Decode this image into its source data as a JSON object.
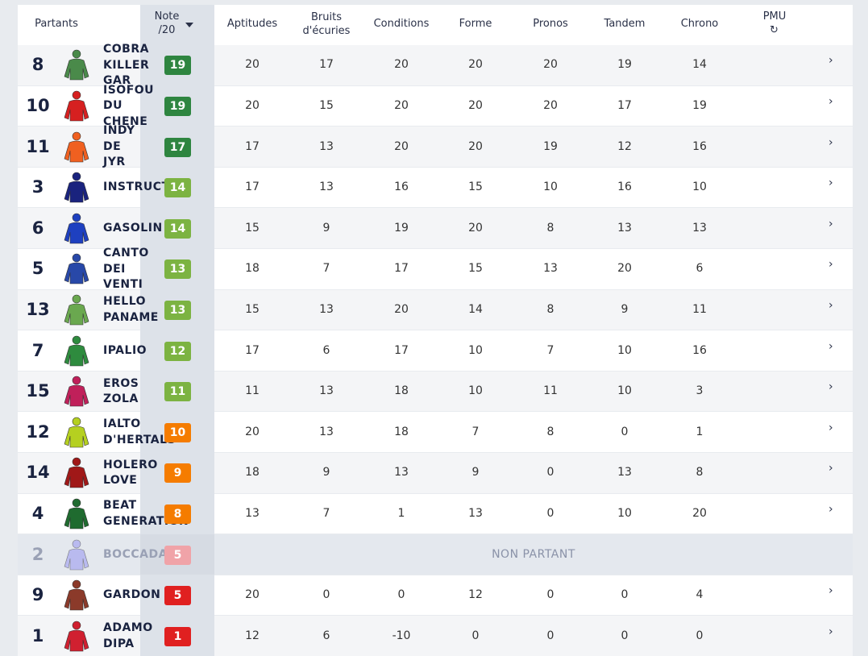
{
  "header": [
    "Partants",
    "Note /20",
    "Aptitudes",
    "Bruits d'écuries",
    "Conditions",
    "Forme",
    "Pronos",
    "Tandem",
    "Chrono",
    "PMU"
  ],
  "rows": [
    {
      "number": "8",
      "name": "COBRA KILLER GAR",
      "note": 19,
      "silks": "#4a8a4a",
      "scores": [
        20,
        17,
        20,
        20,
        20,
        19,
        14
      ]
    },
    {
      "number": "10",
      "name": "ISOFOU DU CHENE",
      "note": 19,
      "silks": "#d62020",
      "scores": [
        20,
        15,
        20,
        20,
        20,
        17,
        19
      ]
    },
    {
      "number": "11",
      "name": "INDY DE JYR",
      "note": 17,
      "silks": "#f06020",
      "scores": [
        17,
        13,
        20,
        20,
        19,
        12,
        16
      ]
    },
    {
      "number": "3",
      "name": "INSTRUCTOR",
      "note": 14,
      "silks": "#1a237e",
      "scores": [
        17,
        13,
        16,
        15,
        10,
        16,
        10
      ]
    },
    {
      "number": "6",
      "name": "GASOLIN",
      "note": 14,
      "silks": "#1e40c0",
      "scores": [
        15,
        9,
        19,
        20,
        8,
        13,
        13
      ]
    },
    {
      "number": "5",
      "name": "CANTO DEI VENTI",
      "note": 13,
      "silks": "#2848a8",
      "scores": [
        18,
        7,
        17,
        15,
        13,
        20,
        6
      ]
    },
    {
      "number": "13",
      "name": "HELLO PANAME",
      "note": 13,
      "silks": "#6aa84f",
      "scores": [
        15,
        13,
        20,
        14,
        8,
        9,
        11
      ]
    },
    {
      "number": "7",
      "name": "IPALIO",
      "note": 12,
      "silks": "#2e8b3e",
      "scores": [
        17,
        6,
        17,
        10,
        7,
        10,
        16
      ]
    },
    {
      "number": "15",
      "name": "EROS ZOLA",
      "note": 11,
      "silks": "#c0205a",
      "scores": [
        11,
        13,
        18,
        10,
        11,
        10,
        3
      ]
    },
    {
      "number": "12",
      "name": "IALTO D'HERTALS",
      "note": 10,
      "silks": "#b5d020",
      "scores": [
        20,
        13,
        18,
        7,
        8,
        0,
        1
      ]
    },
    {
      "number": "14",
      "name": "HOLERO LOVE",
      "note": 9,
      "silks": "#a01818",
      "scores": [
        18,
        9,
        13,
        9,
        0,
        13,
        8
      ]
    },
    {
      "number": "4",
      "name": "BEAT GENERATION",
      "note": 8,
      "silks": "#1f6b2f",
      "scores": [
        13,
        7,
        1,
        13,
        0,
        10,
        20
      ]
    },
    {
      "number": "2",
      "name": "BOCCADAMO",
      "note": 5,
      "silks": "#9d9df0",
      "status": "NON PARTANT"
    },
    {
      "number": "9",
      "name": "GARDON",
      "note": 5,
      "silks": "#8b3a2a",
      "scores": [
        20,
        0,
        0,
        12,
        0,
        0,
        4
      ]
    },
    {
      "number": "1",
      "name": "ADAMO DIPA",
      "note": 1,
      "silks": "#d02030",
      "scores": [
        12,
        6,
        -10,
        0,
        0,
        0,
        0
      ]
    }
  ]
}
